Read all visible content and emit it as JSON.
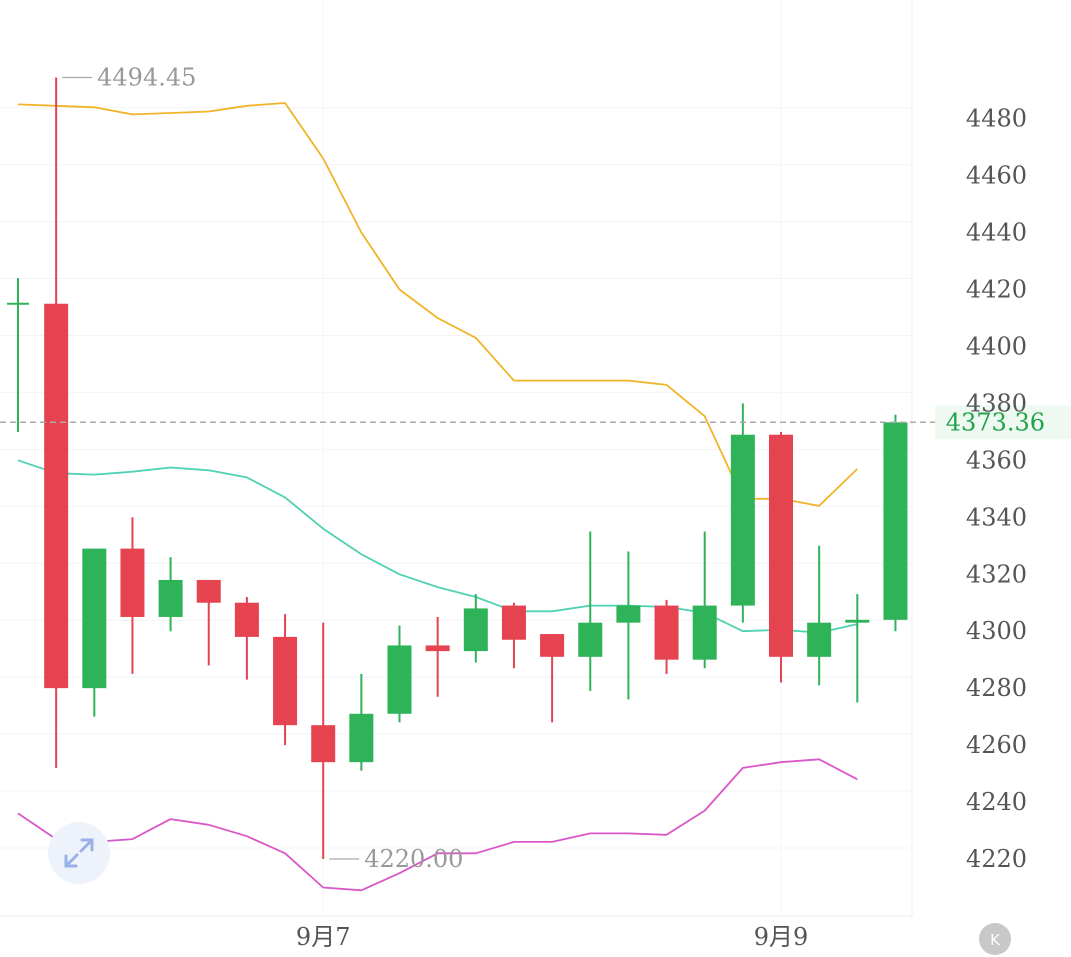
{
  "chart_data": {
    "type": "candlestick",
    "y_ticks": [
      4220,
      4240,
      4260,
      4280,
      4300,
      4320,
      4340,
      4360,
      4380,
      4400,
      4420,
      4440,
      4460,
      4480
    ],
    "ylim": [
      4197,
      4518
    ],
    "x_tick_labels": [
      {
        "label": "9月7",
        "index": 8
      },
      {
        "label": "9月9",
        "index": 20
      }
    ],
    "current_price": "4373.36",
    "high_label": "4494.45",
    "low_label": "4220.00",
    "high_index": 1,
    "low_index": 8,
    "colors": {
      "up": "#2eb358",
      "down": "#e5434f",
      "upper_band": "#f0b429",
      "middle_band": "#4fd1b3",
      "lower_band": "#d957c8",
      "price_text": "#22a34a"
    },
    "candles": [
      {
        "o": 4415,
        "h": 4424,
        "l": 4370,
        "c": 4415
      },
      {
        "o": 4415,
        "h": 4494.45,
        "l": 4252,
        "c": 4280
      },
      {
        "o": 4280,
        "h": 4329,
        "l": 4270,
        "c": 4329
      },
      {
        "o": 4329,
        "h": 4340,
        "l": 4285,
        "c": 4305
      },
      {
        "o": 4305,
        "h": 4326,
        "l": 4300,
        "c": 4318
      },
      {
        "o": 4318,
        "h": 4318,
        "l": 4288,
        "c": 4310
      },
      {
        "o": 4310,
        "h": 4312,
        "l": 4283,
        "c": 4298
      },
      {
        "o": 4298,
        "h": 4306,
        "l": 4260,
        "c": 4267
      },
      {
        "o": 4267,
        "h": 4303,
        "l": 4220.0,
        "c": 4254
      },
      {
        "o": 4254,
        "h": 4285,
        "l": 4251,
        "c": 4271
      },
      {
        "o": 4271,
        "h": 4302,
        "l": 4268,
        "c": 4295
      },
      {
        "o": 4295,
        "h": 4305,
        "l": 4277,
        "c": 4293
      },
      {
        "o": 4293,
        "h": 4313,
        "l": 4289,
        "c": 4308
      },
      {
        "o": 4309,
        "h": 4310,
        "l": 4287,
        "c": 4297
      },
      {
        "o": 4299,
        "h": 4299,
        "l": 4268,
        "c": 4291
      },
      {
        "o": 4291,
        "h": 4335,
        "l": 4279,
        "c": 4303
      },
      {
        "o": 4303,
        "h": 4328,
        "l": 4276,
        "c": 4309
      },
      {
        "o": 4309,
        "h": 4311,
        "l": 4285,
        "c": 4290
      },
      {
        "o": 4290,
        "h": 4335,
        "l": 4287,
        "c": 4309
      },
      {
        "o": 4309,
        "h": 4380,
        "l": 4303,
        "c": 4369
      },
      {
        "o": 4369,
        "h": 4370,
        "l": 4282,
        "c": 4291
      },
      {
        "o": 4291,
        "h": 4330,
        "l": 4281,
        "c": 4303
      },
      {
        "o": 4303,
        "h": 4313,
        "l": 4275,
        "c": 4304
      },
      {
        "o": 4304,
        "h": 4376,
        "l": 4300,
        "c": 4373.36
      }
    ],
    "upper_band": [
      4485,
      4484.5,
      4484,
      4481.5,
      4482,
      4482.5,
      4484.5,
      4485.5,
      4466,
      4440,
      4420,
      4410,
      4403,
      4388,
      4388,
      4388,
      4388,
      4386.5,
      4375.5,
      4346.5,
      4346.5,
      4344,
      4357
    ],
    "middle_band": [
      4360,
      4355.5,
      4355,
      4356,
      4357.5,
      4356.5,
      4354,
      4347,
      4336,
      4327,
      4320,
      4315.5,
      4312,
      4307,
      4307,
      4309,
      4309,
      4308.5,
      4306.5,
      4300,
      4300.5,
      4299.5,
      4302.5
    ],
    "lower_band": [
      4236,
      4227,
      4226,
      4227,
      4234,
      4232,
      4228,
      4222,
      4210,
      4209,
      4215,
      4222,
      4222,
      4226,
      4226,
      4229,
      4229,
      4228.5,
      4237,
      4252,
      4254,
      4255,
      4248
    ]
  }
}
